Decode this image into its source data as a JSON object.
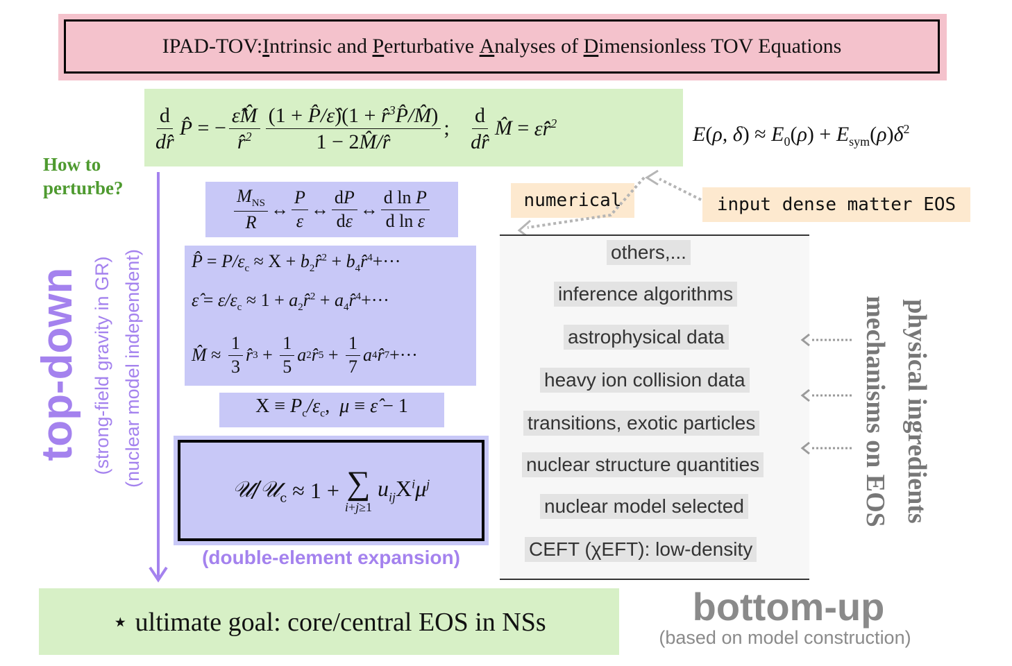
{
  "title": {
    "prefix": "IPAD-TOV: ",
    "w1_u": "I",
    "w1_rest": "ntrinsic and ",
    "w2_u": "P",
    "w2_rest": "erturbative ",
    "w3_u": "A",
    "w3_rest": "nalyses of ",
    "w4_u": "D",
    "w4_rest": "imensionless TOV Equations"
  },
  "how_to": {
    "line1": "How to",
    "line2": "perturbe?"
  },
  "left_side": {
    "main": "top-down",
    "sub1": "(strong-field gravity in GR)",
    "sub2": "(nuclear model independent)"
  },
  "expansion_label": "(double-element expansion)",
  "goal": "⋆ ultimate goal: core/central EOS in NSs",
  "numerical": "numerical",
  "input_eos": "input dense matter EOS",
  "right_side": {
    "line1": "physical ingredients",
    "line2": "mechanisms on EOS"
  },
  "bottom_up": {
    "main": "bottom-up",
    "sub": "(based on model construction)"
  },
  "ingredients": [
    "others,...",
    "inference algorithms",
    "astrophysical data",
    "heavy ion collision data",
    "transitions, exotic particles",
    "nuclear structure quantities",
    "nuclear model selected",
    "CEFT (χEFT): low-density"
  ],
  "colors": {
    "title_bg": "#f4c2cc",
    "green_bg": "#d7f0c6",
    "blue_bg": "#c8c8f7",
    "purple": "#a482ee",
    "green_text": "#4e9a2f",
    "gray_text": "#8a8a8a",
    "orange_bg": "#fde9cf"
  }
}
